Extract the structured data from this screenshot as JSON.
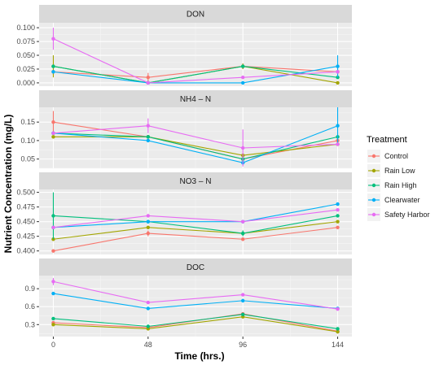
{
  "chart_data": {
    "type": "line",
    "x_label": "Time (hrs.)",
    "y_label": "Nutrient Concentration (mg/L)",
    "x": [
      0,
      48,
      96,
      144
    ],
    "x_ticks": [
      "0",
      "48",
      "96",
      "144"
    ],
    "legend": {
      "title": "Treatment",
      "position": "right",
      "entries": [
        "Control",
        "Rain Low",
        "Rain High",
        "Clearwater",
        "Safety Harbor"
      ]
    },
    "colors": {
      "Control": "#F8766D",
      "Rain Low": "#A3A500",
      "Rain High": "#00BF7D",
      "Clearwater": "#00B0F6",
      "Safety Harbor": "#E76BF3"
    },
    "panels": [
      {
        "title": "DON",
        "ylim": [
          -0.006,
          0.109
        ],
        "y_ticks": [
          0.0,
          0.025,
          0.05,
          0.075,
          0.1
        ],
        "y_tick_labels": [
          "0.000",
          "0.025",
          "0.050",
          "0.075",
          "0.100"
        ],
        "series": [
          {
            "name": "Control",
            "values": [
              0.02,
              0.01,
              0.03,
              0.02
            ],
            "errors": [
              0.005,
              0.008,
              0.005,
              0.005
            ]
          },
          {
            "name": "Rain Low",
            "values": [
              0.03,
              0.0,
              0.03,
              0.0
            ],
            "errors": [
              0.02,
              0.0,
              0.005,
              0.0
            ]
          },
          {
            "name": "Rain High",
            "values": [
              0.03,
              0.0,
              0.03,
              0.01
            ],
            "errors": [
              0.0,
              0.0,
              0.0,
              0.0
            ]
          },
          {
            "name": "Clearwater",
            "values": [
              0.02,
              0.0,
              0.0,
              0.03
            ],
            "errors": [
              0.0,
              0.0,
              0.0,
              0.02
            ]
          },
          {
            "name": "Safety Harbor",
            "values": [
              0.08,
              0.0,
              0.01,
              0.02
            ],
            "errors": [
              0.02,
              0.0,
              0.0,
              0.0
            ]
          }
        ]
      },
      {
        "title": "NH4 – N",
        "ylim": [
          0.025,
          0.19
        ],
        "y_ticks": [
          0.05,
          0.1,
          0.15
        ],
        "y_tick_labels": [
          "0.05",
          "0.10",
          "0.15"
        ],
        "series": [
          {
            "name": "Control",
            "values": [
              0.15,
              0.11,
              0.05,
              0.1
            ],
            "errors": [
              0.03,
              0.0,
              0.0,
              0.0
            ]
          },
          {
            "name": "Rain Low",
            "values": [
              0.11,
              0.11,
              0.06,
              0.09
            ],
            "errors": [
              0.0,
              0.0,
              0.0,
              0.0
            ]
          },
          {
            "name": "Rain High",
            "values": [
              0.12,
              0.11,
              0.05,
              0.11
            ],
            "errors": [
              0.0,
              0.0,
              0.0,
              0.0
            ]
          },
          {
            "name": "Clearwater",
            "values": [
              0.12,
              0.1,
              0.04,
              0.14
            ],
            "errors": [
              0.0,
              0.0,
              0.0,
              0.05
            ]
          },
          {
            "name": "Safety Harbor",
            "values": [
              0.12,
              0.14,
              0.08,
              0.09
            ],
            "errors": [
              0.0,
              0.02,
              0.05,
              0.0
            ]
          }
        ]
      },
      {
        "title": "NO3 – N",
        "ylim": [
          0.394,
          0.505
        ],
        "y_ticks": [
          0.4,
          0.425,
          0.45,
          0.475,
          0.5
        ],
        "y_tick_labels": [
          "0.400",
          "0.425",
          "0.450",
          "0.475",
          "0.500"
        ],
        "series": [
          {
            "name": "Control",
            "values": [
              0.4,
              0.43,
              0.42,
              0.44
            ],
            "errors": [
              0.0,
              0.005,
              0.0,
              0.0
            ]
          },
          {
            "name": "Rain Low",
            "values": [
              0.42,
              0.44,
              0.43,
              0.45
            ],
            "errors": [
              0.0,
              0.0,
              0.0,
              0.0
            ]
          },
          {
            "name": "Rain High",
            "values": [
              0.46,
              0.45,
              0.43,
              0.46
            ],
            "errors": [
              0.04,
              0.0,
              0.005,
              0.0
            ]
          },
          {
            "name": "Clearwater",
            "values": [
              0.44,
              0.45,
              0.45,
              0.48
            ],
            "errors": [
              0.0,
              0.0,
              0.0,
              0.0
            ]
          },
          {
            "name": "Safety Harbor",
            "values": [
              0.44,
              0.46,
              0.45,
              0.47
            ],
            "errors": [
              0.0,
              0.0,
              0.0,
              0.0
            ]
          }
        ]
      },
      {
        "title": "DOC",
        "ylim": [
          0.1,
          1.12
        ],
        "y_ticks": [
          0.3,
          0.6,
          0.9
        ],
        "y_tick_labels": [
          "0.3",
          "0.6",
          "0.9"
        ],
        "series": [
          {
            "name": "Control",
            "values": [
              0.33,
              0.25,
              0.48,
              0.19
            ],
            "errors": [
              0.0,
              0.0,
              0.0,
              0.04
            ]
          },
          {
            "name": "Rain Low",
            "values": [
              0.3,
              0.23,
              0.43,
              0.18
            ],
            "errors": [
              0.0,
              0.0,
              0.0,
              0.0
            ]
          },
          {
            "name": "Rain High",
            "values": [
              0.4,
              0.27,
              0.47,
              0.23
            ],
            "errors": [
              0.0,
              0.0,
              0.0,
              0.0
            ]
          },
          {
            "name": "Clearwater",
            "values": [
              0.82,
              0.57,
              0.7,
              0.57
            ],
            "errors": [
              0.0,
              0.0,
              0.0,
              0.0
            ]
          },
          {
            "name": "Safety Harbor",
            "values": [
              1.02,
              0.67,
              0.8,
              0.56
            ],
            "errors": [
              0.06,
              0.0,
              0.0,
              0.0
            ]
          }
        ]
      }
    ]
  }
}
